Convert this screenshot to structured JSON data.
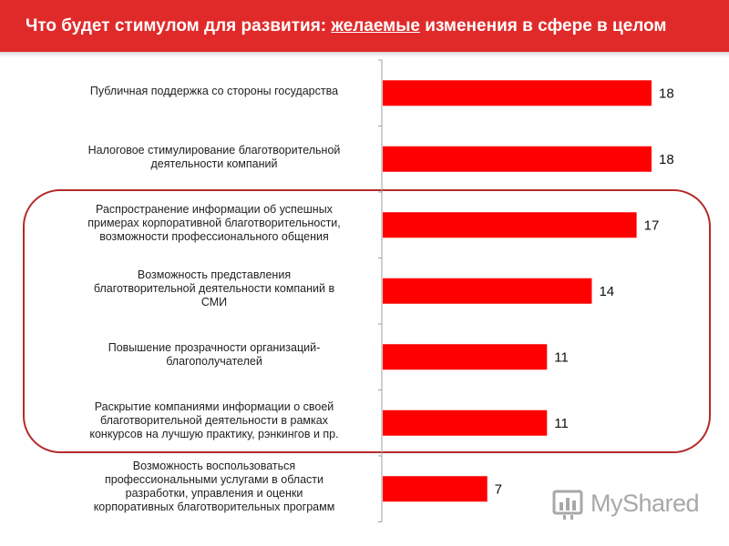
{
  "header": {
    "title_before": "Что будет стимулом для развития: ",
    "title_emphasis": "желаемые",
    "title_after": " изменения в сфере в целом"
  },
  "colors": {
    "accent": "#e02a2a",
    "bar": "#ff0000",
    "highlight": "#b52a2a"
  },
  "watermark": {
    "text": "MyShared",
    "icon": "myshared-logo-icon"
  },
  "chart_data": {
    "type": "bar",
    "orientation": "horizontal",
    "title": "",
    "xlabel": "",
    "ylabel": "",
    "xlim": [
      0,
      18
    ],
    "grid": false,
    "legend": "none",
    "categories": [
      "Публичная поддержка со стороны государства",
      "Налоговое стимулирование благотворительной деятельности компаний",
      "Распространение информации об успешных примерах корпоративной благотворительности, возможности профессионального общения",
      "Возможность представления благотворительной деятельности компаний в СМИ",
      "Повышение прозрачности организаций-благополучателей",
      "Раскрытие компаниями информации о своей благотворительной деятельности в рамках конкурсов на лучшую практику, рэнкингов и пр.",
      "Возможность воспользоваться профессиональными услугами в области разработки, управления и оценки корпоративных благотворительных программ"
    ],
    "values": [
      18,
      18,
      17,
      14,
      11,
      11,
      7
    ],
    "labels": [
      "Публичная поддержка со стороны государства",
      "Налоговое стимулирование благотворительной\nдеятельности компаний",
      "Распространение информации об успешных\nпримерах корпоративной благотворительности,\nвозможности профессионального общения",
      "Возможность представления\nблаготворительной деятельности компаний в\nСМИ",
      "Повышение прозрачности организаций-\nблагополучателей",
      "Раскрытие компаниями информации о своей\nблаготворительной деятельности в рамках\nконкурсов на лучшую практику, рэнкингов и пр.",
      "Возможность воспользоваться\nпрофессиональными услугами в области\nразработки, управления и оценки\nкорпоративных благотворительных программ"
    ],
    "highlighted_categories": [
      2,
      3,
      4,
      5
    ]
  }
}
